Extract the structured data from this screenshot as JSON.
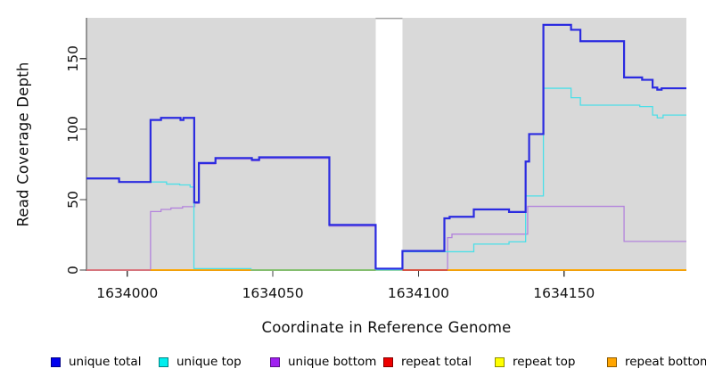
{
  "chart_data": {
    "type": "line",
    "subtype": "step-coverage-plot",
    "xlabel": "Coordinate in Reference Genome",
    "ylabel": "Read Coverage Depth",
    "xlim": [
      1633986,
      1634192
    ],
    "ylim": [
      0,
      179
    ],
    "x_tick_values": [
      1634000,
      1634050,
      1634100,
      1634150
    ],
    "x_tick_labels": [
      "1634000",
      "1634050",
      "1634100",
      "1634150"
    ],
    "y_tick_values": [
      0,
      50,
      100,
      150
    ],
    "y_tick_labels": [
      "0",
      "50",
      "100",
      "150"
    ],
    "grid": "off",
    "legend_position": "bottom",
    "plot_bg": "#d9d9d9",
    "axis_color": "#404040",
    "gap_band": {
      "x_from": 1634085.3,
      "x_to": 1634094.5,
      "fill": "#ffffff",
      "top_edge_color": "#a3a3a3"
    },
    "draw_order": [
      "repeat total",
      "repeat top",
      "repeat bottom",
      "unique bottom",
      "unique top",
      "unique total"
    ],
    "series": [
      {
        "name": "unique total",
        "legend_color": "#0000ee",
        "line_color": "#2b2be0",
        "line_width": 2.2,
        "points": [
          [
            1633986,
            65
          ],
          [
            1633997.2,
            62.5
          ],
          [
            1634008,
            106.5
          ],
          [
            1634011.6,
            108
          ],
          [
            1634018.3,
            106.5
          ],
          [
            1634019.3,
            108
          ],
          [
            1634023,
            48
          ],
          [
            1634024.6,
            76
          ],
          [
            1634030.3,
            79.5
          ],
          [
            1634042.8,
            78.2
          ],
          [
            1634045.3,
            80
          ],
          [
            1634069.4,
            32
          ],
          [
            1634085.3,
            1
          ],
          [
            1634094.5,
            13.5
          ],
          [
            1634108.9,
            36.7
          ],
          [
            1634110.7,
            37.8
          ],
          [
            1634119,
            43
          ],
          [
            1634131.1,
            41.2
          ],
          [
            1634136.8,
            77
          ],
          [
            1634138,
            96.5
          ],
          [
            1634142.9,
            174
          ],
          [
            1634152.4,
            170.5
          ],
          [
            1634155.6,
            162.4
          ],
          [
            1634170.6,
            136.7
          ],
          [
            1634176.8,
            135
          ],
          [
            1634180.4,
            129.5
          ],
          [
            1634182,
            128
          ],
          [
            1634183.5,
            129
          ]
        ]
      },
      {
        "name": "unique top",
        "legend_color": "#00eeee",
        "line_color": "#4cdfe8",
        "line_width": 1.3,
        "points": [
          [
            1633986,
            65
          ],
          [
            1633997.2,
            62.5
          ],
          [
            1634013.5,
            61
          ],
          [
            1634018,
            60.4
          ],
          [
            1634021.6,
            58.9
          ],
          [
            1634022.9,
            1
          ],
          [
            1634042.5,
            0
          ],
          [
            1634094.5,
            13
          ],
          [
            1634119,
            18.4
          ],
          [
            1634131.1,
            20
          ],
          [
            1634136.8,
            52.6
          ],
          [
            1634142.9,
            129
          ],
          [
            1634152.4,
            122.3
          ],
          [
            1634155.6,
            117
          ],
          [
            1634176,
            116
          ],
          [
            1634180.4,
            110
          ],
          [
            1634182,
            108
          ],
          [
            1634184,
            110
          ]
        ]
      },
      {
        "name": "unique bottom",
        "legend_color": "#a020f0",
        "line_color": "#b383dc",
        "line_width": 1.3,
        "points": [
          [
            1633986,
            0
          ],
          [
            1634008,
            41.5
          ],
          [
            1634011.6,
            43
          ],
          [
            1634015,
            44
          ],
          [
            1634019,
            45
          ],
          [
            1634023.2,
            47.3
          ],
          [
            1634024.6,
            75.3
          ],
          [
            1634030.3,
            78.8
          ],
          [
            1634042.8,
            77.5
          ],
          [
            1634045.3,
            79.2
          ],
          [
            1634069.4,
            31.2
          ],
          [
            1634085.3,
            0.5
          ],
          [
            1634094.5,
            0
          ],
          [
            1634110,
            23
          ],
          [
            1634111.5,
            25.5
          ],
          [
            1634137.5,
            45.2
          ],
          [
            1634170.6,
            20.3
          ]
        ]
      },
      {
        "name": "repeat total",
        "legend_color": "#ee0000",
        "line_color": "#dd4444",
        "line_width": 1.3,
        "points": [
          [
            1633986,
            0
          ]
        ]
      },
      {
        "name": "repeat top",
        "legend_color": "#ffff00",
        "line_color": "#ffff00",
        "line_width": 1.3,
        "points": [
          [
            1633986,
            0
          ]
        ]
      },
      {
        "name": "repeat bottom",
        "legend_color": "#ffa500",
        "line_color": "#ffa500",
        "line_width": 1.4,
        "points": [
          [
            1633986,
            0
          ]
        ]
      }
    ],
    "zero_overlays": [
      {
        "x_from": 1633986,
        "x_to": 1634008,
        "color": "#d96b8b"
      },
      {
        "x_from": 1634008,
        "x_to": 1634042.5,
        "color": "#ffa500"
      },
      {
        "x_from": 1634042.5,
        "x_to": 1634085.3,
        "color": "#74c476"
      },
      {
        "x_from": 1634094.5,
        "x_to": 1634110,
        "color": "#d94040"
      },
      {
        "x_from": 1634110,
        "x_to": 1634192,
        "color": "#ffa500"
      }
    ],
    "legend": [
      {
        "label": "unique total",
        "color": "#0000ee"
      },
      {
        "label": "unique top",
        "color": "#00eeee"
      },
      {
        "label": "unique bottom",
        "color": "#a020f0"
      },
      {
        "label": "repeat total",
        "color": "#ee0000"
      },
      {
        "label": "repeat top",
        "color": "#ffff00"
      },
      {
        "label": "repeat bottom",
        "color": "#ffa500"
      }
    ]
  }
}
